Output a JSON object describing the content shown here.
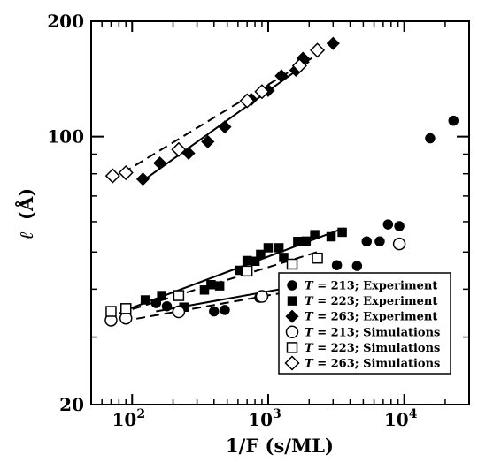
{
  "chart_data": {
    "type": "scatter",
    "title": "",
    "xlabel": "1/F (s/ML)",
    "ylabel_symbol": "ℓ",
    "ylabel_unit": "(Å)",
    "xscale": "log",
    "yscale": "log",
    "xlim": [
      50,
      30000
    ],
    "ylim": [
      20,
      200
    ],
    "grid": false,
    "legend_position": "bottom-right",
    "x_ticks": [
      {
        "base": "10",
        "exp": "2",
        "value": 100
      },
      {
        "base": "10",
        "exp": "3",
        "value": 1000
      },
      {
        "base": "10",
        "exp": "4",
        "value": 10000
      }
    ],
    "y_ticks": [
      {
        "label": "20",
        "value": 20
      },
      {
        "label": "100",
        "value": 100
      },
      {
        "label": "200",
        "value": 200
      }
    ],
    "series": [
      {
        "legend_var": "T",
        "legend_rest": " = 213; Experiment",
        "marker": "circle",
        "filled": true,
        "points": [
          [
            150,
            36.8
          ],
          [
            180,
            36.1
          ],
          [
            400,
            35.0
          ],
          [
            480,
            35.3
          ],
          [
            860,
            38.0
          ],
          [
            1350,
            40.0
          ],
          [
            1650,
            39.5
          ],
          [
            1900,
            41.5
          ],
          [
            2050,
            40.6
          ],
          [
            3200,
            46.2
          ],
          [
            4500,
            46.0
          ],
          [
            5300,
            53.3
          ],
          [
            6600,
            53.3
          ],
          [
            7600,
            59.0
          ],
          [
            9200,
            58.4
          ],
          [
            15500,
            99.0
          ],
          [
            23000,
            110.0
          ]
        ],
        "fit": {
          "x": [
            150,
            2200
          ],
          "y": [
            35.0,
            41.5
          ],
          "dashed": false
        }
      },
      {
        "legend_var": "T",
        "legend_rest": " = 223; Experiment",
        "marker": "square",
        "filled": true,
        "points": [
          [
            125,
            37.5
          ],
          [
            165,
            38.5
          ],
          [
            240,
            35.9
          ],
          [
            340,
            39.8
          ],
          [
            380,
            41.1
          ],
          [
            440,
            40.8
          ],
          [
            620,
            44.8
          ],
          [
            700,
            47.5
          ],
          [
            800,
            47.3
          ],
          [
            880,
            49.3
          ],
          [
            1000,
            51.3
          ],
          [
            1200,
            51.3
          ],
          [
            1300,
            48.4
          ],
          [
            1650,
            53.3
          ],
          [
            1900,
            53.4
          ],
          [
            2200,
            55.5
          ],
          [
            2900,
            54.8
          ],
          [
            3500,
            56.3
          ]
        ],
        "fit": {
          "x": [
            90,
            3600
          ],
          "y": [
            35.3,
            57.7
          ],
          "dashed": false
        }
      },
      {
        "legend_var": "T",
        "legend_rest": " = 263; Experiment",
        "marker": "diamond",
        "filled": true,
        "points": [
          [
            120,
            77.5
          ],
          [
            160,
            85.3
          ],
          [
            260,
            90.5
          ],
          [
            360,
            97.0
          ],
          [
            480,
            106.0
          ],
          [
            750,
            125.0
          ],
          [
            1000,
            132.0
          ],
          [
            1250,
            144.0
          ],
          [
            1600,
            149.0
          ],
          [
            1800,
            160.0
          ],
          [
            3000,
            175.0
          ]
        ],
        "fit": {
          "x": [
            125,
            2000
          ],
          "y": [
            77.5,
            157.0
          ],
          "dashed": false
        }
      },
      {
        "legend_var": "T",
        "legend_rest": " = 213; Simulations",
        "marker": "circle",
        "filled": false,
        "points": [
          [
            70,
            33.2
          ],
          [
            90,
            33.6
          ],
          [
            220,
            34.9
          ],
          [
            900,
            38.3
          ],
          [
            2300,
            41.0
          ],
          [
            9200,
            52.5
          ]
        ],
        "fit": {
          "x": [
            85,
            2300
          ],
          "y": [
            33.0,
            40.6
          ],
          "dashed": true
        }
      },
      {
        "legend_var": "T",
        "legend_rest": " = 223; Simulations",
        "marker": "square",
        "filled": false,
        "points": [
          [
            70,
            35.0
          ],
          [
            90,
            35.6
          ],
          [
            220,
            38.5
          ],
          [
            700,
            44.6
          ],
          [
            1500,
            46.5
          ],
          [
            2300,
            48.2
          ]
        ],
        "fit": {
          "x": [
            80,
            2300
          ],
          "y": [
            34.6,
            50.0
          ],
          "dashed": true
        }
      },
      {
        "legend_var": "T",
        "legend_rest": " = 263; Simulations",
        "marker": "diamond",
        "filled": false,
        "points": [
          [
            72,
            79.0
          ],
          [
            90,
            80.5
          ],
          [
            220,
            92.5
          ],
          [
            700,
            124.0
          ],
          [
            900,
            131.0
          ],
          [
            1700,
            153.0
          ],
          [
            2300,
            168.0
          ]
        ],
        "fit": {
          "x": [
            70,
            2300
          ],
          "y": [
            77.0,
            163.5
          ],
          "dashed": true
        }
      }
    ]
  }
}
